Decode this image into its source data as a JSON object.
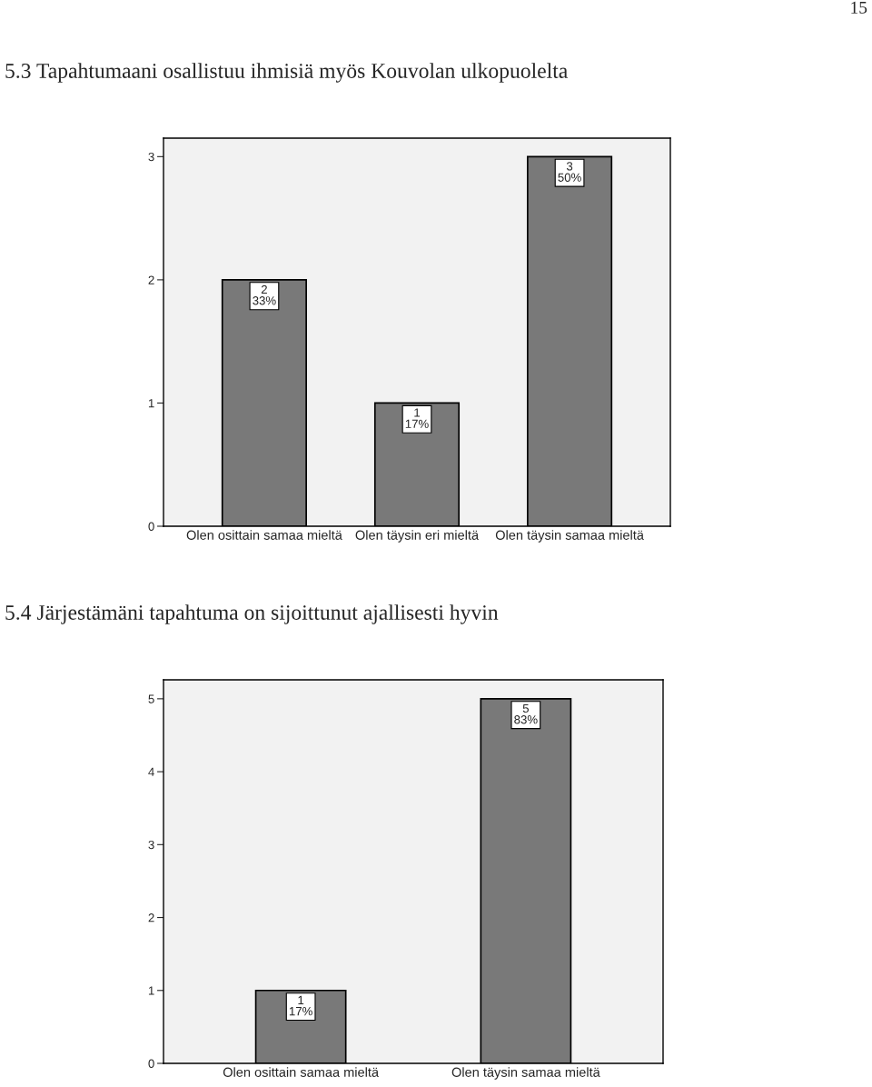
{
  "chart_data": [
    {
      "type": "bar",
      "title": "5.3 Tapahtumaani osallistuu ihmisiä myös Kouvolan ulkopuolelta",
      "annotations": [
        "15"
      ],
      "categories": [
        "Olen osittain samaa mieltä",
        "Olen täysin eri mieltä",
        "Olen täysin samaa mieltä"
      ],
      "values": [
        2,
        1,
        3
      ],
      "value_labels": [
        "2\n33%",
        "1\n17%",
        "3\n50%"
      ],
      "color": "#797979",
      "ylim": [
        0,
        3.15
      ],
      "yticks": [
        0,
        1,
        2,
        3
      ],
      "grid": false,
      "legend": false
    },
    {
      "type": "bar",
      "title": "5.4 Järjestämäni tapahtuma on sijoittunut ajallisesti hyvin",
      "categories": [
        "Olen osittain samaa mieltä",
        "Olen täysin samaa mieltä"
      ],
      "values": [
        1,
        5
      ],
      "value_labels": [
        "1\n17%",
        "5\n83%"
      ],
      "color": "#797979",
      "ylim": [
        0,
        5.26
      ],
      "yticks": [
        0,
        1,
        2,
        3,
        4,
        5
      ],
      "grid": false,
      "legend": false
    }
  ]
}
